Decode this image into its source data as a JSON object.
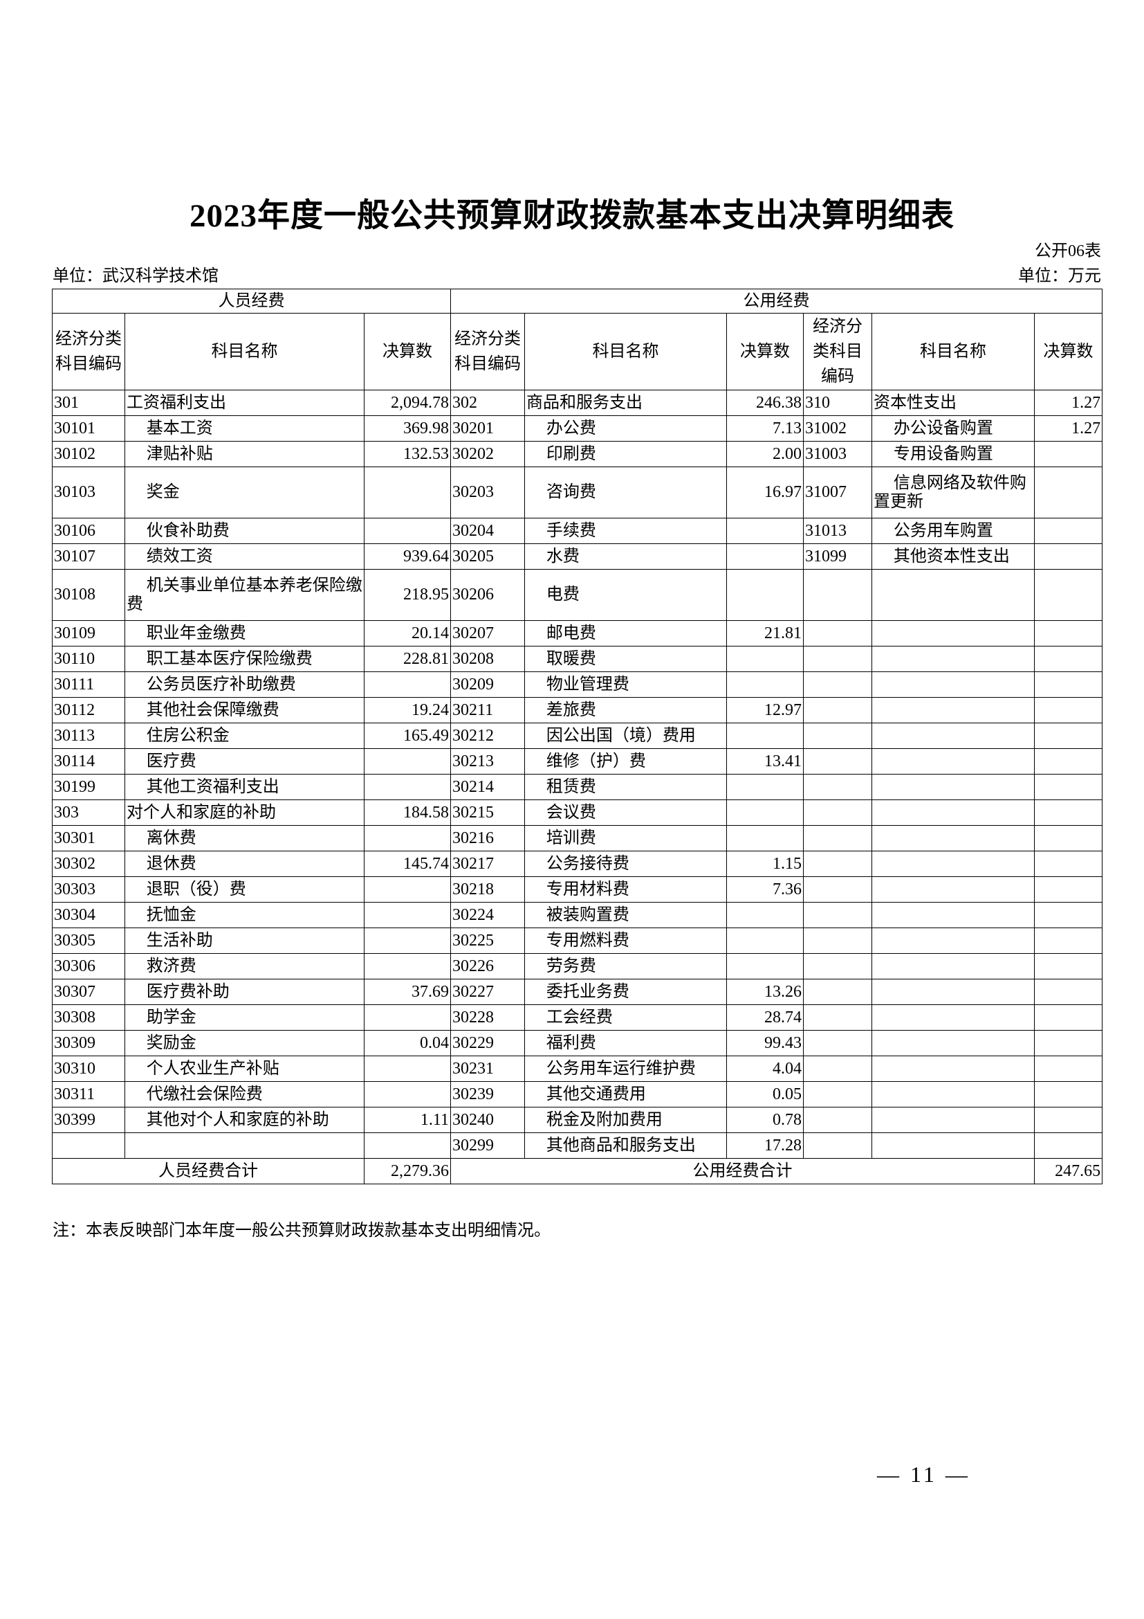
{
  "title": "2023年度一般公共预算财政拨款基本支出决算明细表",
  "form_no": "公开06表",
  "unit_left": "单位：武汉科学技术馆",
  "unit_right": "单位：万元",
  "headers": {
    "personnel": "人员经费",
    "public": "公用经费",
    "code": "经济分类科目编码",
    "name": "科目名称",
    "amount": "决算数"
  },
  "rows": [
    {
      "l": [
        "301",
        "工资福利支出",
        "2,094.78",
        0
      ],
      "m": [
        "302",
        "商品和服务支出",
        "246.38",
        0
      ],
      "r": [
        "310",
        "资本性支出",
        "1.27",
        0
      ]
    },
    {
      "l": [
        "30101",
        "基本工资",
        "369.98",
        1
      ],
      "m": [
        "30201",
        "办公费",
        "7.13",
        1
      ],
      "r": [
        "31002",
        "办公设备购置",
        "1.27",
        1
      ]
    },
    {
      "l": [
        "30102",
        "津贴补贴",
        "132.53",
        1
      ],
      "m": [
        "30202",
        "印刷费",
        "2.00",
        1
      ],
      "r": [
        "31003",
        "专用设备购置",
        "",
        1
      ]
    },
    {
      "tall": true,
      "l": [
        "30103",
        "奖金",
        "",
        1
      ],
      "m": [
        "30203",
        "咨询费",
        "16.97",
        1
      ],
      "r": [
        "31007",
        "信息网络及软件购置更新",
        "",
        1
      ]
    },
    {
      "l": [
        "30106",
        "伙食补助费",
        "",
        1
      ],
      "m": [
        "30204",
        "手续费",
        "",
        1
      ],
      "r": [
        "31013",
        "公务用车购置",
        "",
        1
      ]
    },
    {
      "l": [
        "30107",
        "绩效工资",
        "939.64",
        1
      ],
      "m": [
        "30205",
        "水费",
        "",
        1
      ],
      "r": [
        "31099",
        "其他资本性支出",
        "",
        1
      ]
    },
    {
      "tall": true,
      "l": [
        "30108",
        "机关事业单位基本养老保险缴费",
        "218.95",
        1
      ],
      "m": [
        "30206",
        "电费",
        "",
        1
      ],
      "r": [
        "",
        "",
        "",
        0
      ]
    },
    {
      "l": [
        "30109",
        "职业年金缴费",
        "20.14",
        1
      ],
      "m": [
        "30207",
        "邮电费",
        "21.81",
        1
      ],
      "r": [
        "",
        "",
        "",
        0
      ]
    },
    {
      "l": [
        "30110",
        "职工基本医疗保险缴费",
        "228.81",
        1
      ],
      "m": [
        "30208",
        "取暖费",
        "",
        1
      ],
      "r": [
        "",
        "",
        "",
        0
      ]
    },
    {
      "l": [
        "30111",
        "公务员医疗补助缴费",
        "",
        1
      ],
      "m": [
        "30209",
        "物业管理费",
        "",
        1
      ],
      "r": [
        "",
        "",
        "",
        0
      ]
    },
    {
      "l": [
        "30112",
        "其他社会保障缴费",
        "19.24",
        1
      ],
      "m": [
        "30211",
        "差旅费",
        "12.97",
        1
      ],
      "r": [
        "",
        "",
        "",
        0
      ]
    },
    {
      "l": [
        "30113",
        "住房公积金",
        "165.49",
        1
      ],
      "m": [
        "30212",
        "因公出国（境）费用",
        "",
        1
      ],
      "r": [
        "",
        "",
        "",
        0
      ]
    },
    {
      "l": [
        "30114",
        "医疗费",
        "",
        1
      ],
      "m": [
        "30213",
        "维修（护）费",
        "13.41",
        1
      ],
      "r": [
        "",
        "",
        "",
        0
      ]
    },
    {
      "l": [
        "30199",
        "其他工资福利支出",
        "",
        1
      ],
      "m": [
        "30214",
        "租赁费",
        "",
        1
      ],
      "r": [
        "",
        "",
        "",
        0
      ]
    },
    {
      "l": [
        "303",
        "对个人和家庭的补助",
        "184.58",
        0
      ],
      "m": [
        "30215",
        "会议费",
        "",
        1
      ],
      "r": [
        "",
        "",
        "",
        0
      ]
    },
    {
      "l": [
        "30301",
        "离休费",
        "",
        1
      ],
      "m": [
        "30216",
        "培训费",
        "",
        1
      ],
      "r": [
        "",
        "",
        "",
        0
      ]
    },
    {
      "l": [
        "30302",
        "退休费",
        "145.74",
        1
      ],
      "m": [
        "30217",
        "公务接待费",
        "1.15",
        1
      ],
      "r": [
        "",
        "",
        "",
        0
      ]
    },
    {
      "l": [
        "30303",
        "退职（役）费",
        "",
        1
      ],
      "m": [
        "30218",
        "专用材料费",
        "7.36",
        1
      ],
      "r": [
        "",
        "",
        "",
        0
      ]
    },
    {
      "l": [
        "30304",
        "抚恤金",
        "",
        1
      ],
      "m": [
        "30224",
        "被装购置费",
        "",
        1
      ],
      "r": [
        "",
        "",
        "",
        0
      ]
    },
    {
      "l": [
        "30305",
        "生活补助",
        "",
        1
      ],
      "m": [
        "30225",
        "专用燃料费",
        "",
        1
      ],
      "r": [
        "",
        "",
        "",
        0
      ]
    },
    {
      "l": [
        "30306",
        "救济费",
        "",
        1
      ],
      "m": [
        "30226",
        "劳务费",
        "",
        1
      ],
      "r": [
        "",
        "",
        "",
        0
      ]
    },
    {
      "l": [
        "30307",
        "医疗费补助",
        "37.69",
        1
      ],
      "m": [
        "30227",
        "委托业务费",
        "13.26",
        1
      ],
      "r": [
        "",
        "",
        "",
        0
      ]
    },
    {
      "l": [
        "30308",
        "助学金",
        "",
        1
      ],
      "m": [
        "30228",
        "工会经费",
        "28.74",
        1
      ],
      "r": [
        "",
        "",
        "",
        0
      ]
    },
    {
      "l": [
        "30309",
        "奖励金",
        "0.04",
        1
      ],
      "m": [
        "30229",
        "福利费",
        "99.43",
        1
      ],
      "r": [
        "",
        "",
        "",
        0
      ]
    },
    {
      "l": [
        "30310",
        "个人农业生产补贴",
        "",
        1
      ],
      "m": [
        "30231",
        "公务用车运行维护费",
        "4.04",
        1
      ],
      "r": [
        "",
        "",
        "",
        0
      ]
    },
    {
      "l": [
        "30311",
        "代缴社会保险费",
        "",
        1
      ],
      "m": [
        "30239",
        "其他交通费用",
        "0.05",
        1
      ],
      "r": [
        "",
        "",
        "",
        0
      ]
    },
    {
      "l": [
        "30399",
        "其他对个人和家庭的补助",
        "1.11",
        1
      ],
      "m": [
        "30240",
        "税金及附加费用",
        "0.78",
        1
      ],
      "r": [
        "",
        "",
        "",
        0
      ]
    },
    {
      "l": [
        "",
        "",
        "",
        0
      ],
      "m": [
        "30299",
        "其他商品和服务支出",
        "17.28",
        1
      ],
      "r": [
        "",
        "",
        "",
        0
      ]
    }
  ],
  "totals": {
    "personnel_label": "人员经费合计",
    "personnel_value": "2,279.36",
    "public_label": "公用经费合计",
    "public_value": "247.65"
  },
  "note": "注：本表反映部门本年度一般公共预算财政拨款基本支出明细情况。",
  "page_number": "— 11 —"
}
